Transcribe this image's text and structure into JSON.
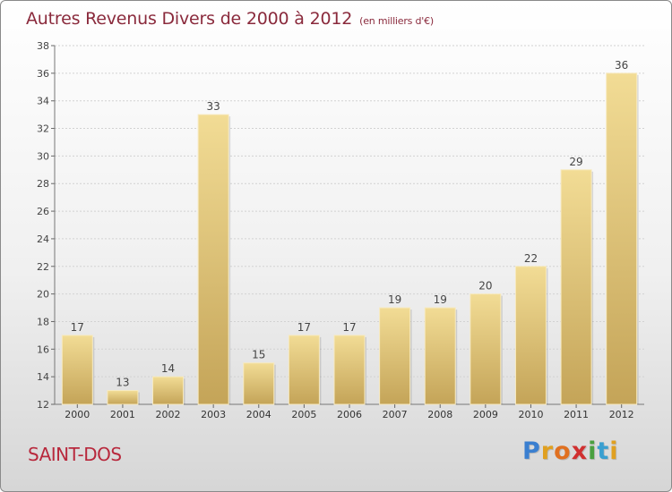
{
  "header": {
    "title": "Autres Revenus Divers de 2000 à 2012",
    "subtitle": "(en milliers d'€)"
  },
  "location": "SAINT-DOS",
  "brand": {
    "letters": [
      "P",
      "r",
      "o",
      "x",
      "i",
      "t",
      "i"
    ],
    "colors": [
      "#3a7fd0",
      "#e0a020",
      "#e07020",
      "#d03030",
      "#4aa040",
      "#3a9fd0",
      "#e0a020"
    ]
  },
  "chart_data": {
    "type": "bar",
    "categories": [
      "2000",
      "2001",
      "2002",
      "2003",
      "2004",
      "2005",
      "2006",
      "2007",
      "2008",
      "2009",
      "2010",
      "2011",
      "2012"
    ],
    "values": [
      17,
      13,
      14,
      33,
      15,
      17,
      17,
      19,
      19,
      20,
      22,
      29,
      36
    ],
    "ylim": [
      12,
      38
    ],
    "yticks": [
      12,
      14,
      16,
      18,
      20,
      22,
      24,
      26,
      28,
      30,
      32,
      34,
      36,
      38
    ],
    "grid": true,
    "bar_color_top": "#f2dc95",
    "bar_color_bottom": "#c4a458"
  }
}
